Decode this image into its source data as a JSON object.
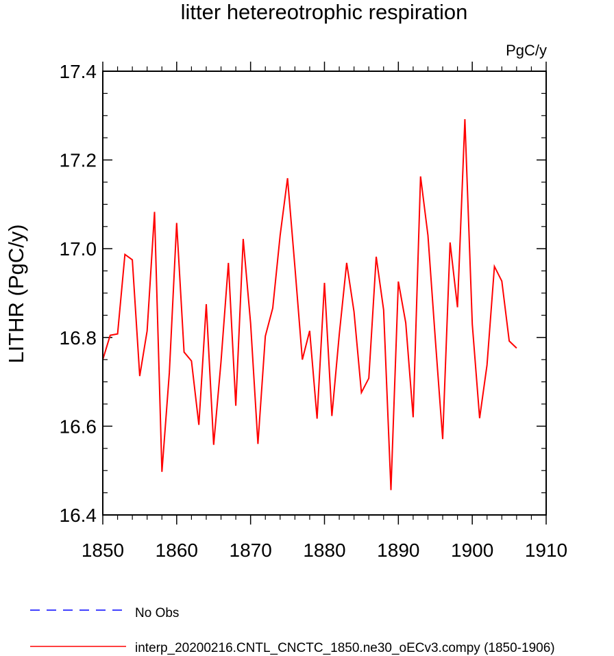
{
  "chart_data": {
    "type": "line",
    "title": "litter hetereotrophic respiration",
    "units_label": "PgC/y",
    "ylabel": "LITHR  (PgC/y)",
    "xlabel": "",
    "xlim": [
      1850,
      1910
    ],
    "ylim": [
      16.4,
      17.4
    ],
    "x_ticks": [
      1850,
      1860,
      1870,
      1880,
      1890,
      1900,
      1910
    ],
    "y_ticks": [
      16.4,
      16.6,
      16.8,
      17.0,
      17.2,
      17.4
    ],
    "x_tick_labels": [
      "1850",
      "1860",
      "1870",
      "1880",
      "1890",
      "1900",
      "1910"
    ],
    "y_tick_labels": [
      "16.4",
      "16.6",
      "16.8",
      "17.0",
      "17.2",
      "17.4"
    ],
    "grid": false,
    "legend_position": "bottom",
    "series": [
      {
        "name": "interp_20200216.CNTL_CNCTC_1850.ne30_oECv3.compy (1850-1906)",
        "color": "#ff0000",
        "style": "solid",
        "x": [
          1850,
          1851,
          1852,
          1853,
          1854,
          1855,
          1856,
          1857,
          1858,
          1859,
          1860,
          1861,
          1862,
          1863,
          1864,
          1865,
          1866,
          1867,
          1868,
          1869,
          1870,
          1871,
          1872,
          1873,
          1874,
          1875,
          1876,
          1877,
          1878,
          1879,
          1880,
          1881,
          1882,
          1883,
          1884,
          1885,
          1886,
          1887,
          1888,
          1889,
          1890,
          1891,
          1892,
          1893,
          1894,
          1895,
          1896,
          1897,
          1898,
          1899,
          1900,
          1901,
          1902,
          1903,
          1904,
          1905,
          1906
        ],
        "values": [
          16.75,
          16.805,
          16.808,
          16.987,
          16.975,
          16.713,
          16.815,
          17.083,
          16.497,
          16.72,
          17.058,
          16.767,
          16.747,
          16.603,
          16.875,
          16.558,
          16.745,
          16.968,
          16.646,
          17.022,
          16.832,
          16.56,
          16.803,
          16.866,
          17.03,
          17.159,
          16.958,
          16.75,
          16.815,
          16.617,
          16.923,
          16.623,
          16.807,
          16.968,
          16.858,
          16.676,
          16.708,
          16.982,
          16.862,
          16.456,
          16.926,
          16.833,
          16.62,
          17.163,
          17.03,
          16.795,
          16.571,
          17.014,
          16.868,
          17.292,
          16.83,
          16.618,
          16.738,
          16.96,
          16.927,
          16.792,
          16.776
        ]
      },
      {
        "name": "No Obs",
        "color": "#0000ff",
        "style": "dashed",
        "x": [],
        "values": []
      }
    ]
  }
}
